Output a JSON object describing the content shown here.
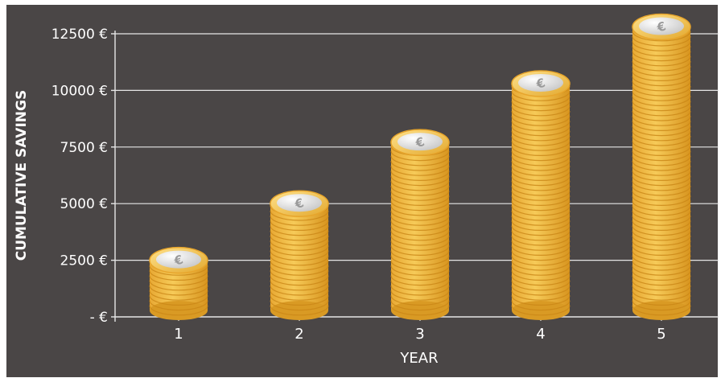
{
  "chart_data": {
    "type": "bar",
    "title": "",
    "xlabel": "YEAR",
    "ylabel": "CUMULATIVE SAVINGS",
    "categories": [
      "1",
      "2",
      "3",
      "4",
      "5"
    ],
    "values": [
      2500,
      5000,
      7700,
      10300,
      12800
    ],
    "ylim": [
      0,
      12500
    ],
    "yticks": [
      0,
      2500,
      5000,
      7500,
      10000,
      12500
    ],
    "ytick_labels": [
      "- €",
      "2500 €",
      "5000 €",
      "7500 €",
      "10000 €",
      "12500 €"
    ],
    "grid": true,
    "legend": "none",
    "bar_style": "stacked gold coins",
    "colors": {
      "background": "#4a4646",
      "grid": "#e6e6e6",
      "text": "#ffffff",
      "coin_gold": "#f2bf47",
      "coin_dark": "#d99a24",
      "coin_face": "#dcdcdc"
    }
  }
}
